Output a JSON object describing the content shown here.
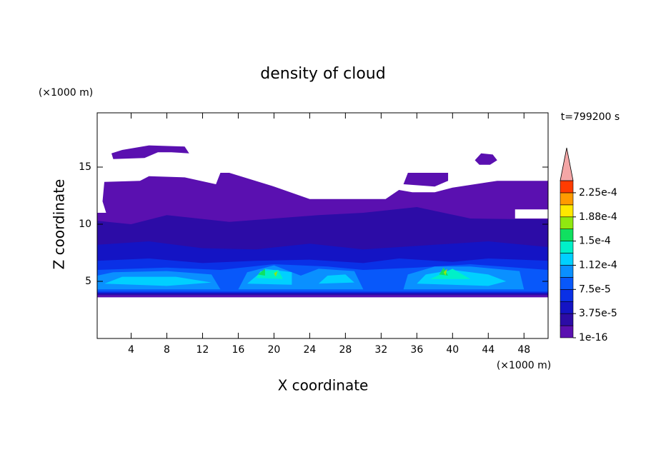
{
  "chart_data": {
    "type": "contour",
    "title": "density of cloud",
    "xlabel": "X coordinate",
    "ylabel": "Z coordinate",
    "x_unit": "(×1000 m)",
    "y_unit": "(×1000 m)",
    "time_label": "t=799200 s",
    "xlim": [
      0.2,
      50.7
    ],
    "ylim": [
      0,
      19.75
    ],
    "xticks": [
      4,
      8,
      12,
      16,
      20,
      24,
      28,
      32,
      36,
      40,
      44,
      48
    ],
    "yticks": [
      5,
      10,
      15
    ],
    "colorbar": {
      "levels": [
        1e-16,
        1.875e-05,
        3.75e-05,
        5.625e-05,
        7.5e-05,
        9.375e-05,
        0.0001125,
        0.00013125,
        0.00015,
        0.00016875,
        0.0001875,
        0.00020625,
        0.000225,
        0.00024375
      ],
      "colors": [
        "#5a10b0",
        "#2c0ca6",
        "#1414c4",
        "#0a30e6",
        "#0858fa",
        "#0a90ff",
        "#00d0ff",
        "#00f0c8",
        "#10e060",
        "#90e810",
        "#ffe800",
        "#ff9a00",
        "#ff3c00"
      ],
      "extend_color": "#f4a6a6",
      "ticks": [
        {
          "value": 1e-16,
          "label": "1e-16"
        },
        {
          "value": 3.75e-05,
          "label": "3.75e-5"
        },
        {
          "value": 7.5e-05,
          "label": "7.5e-5"
        },
        {
          "value": 0.0001125,
          "label": "1.12e-4"
        },
        {
          "value": 0.00015,
          "label": "1.5e-4"
        },
        {
          "value": 0.0001875,
          "label": "1.88e-4"
        },
        {
          "value": 0.000225,
          "label": "2.25e-4"
        }
      ]
    },
    "regions": [
      {
        "level": 1e-16,
        "outline": [
          [
            0.2,
            3.6
          ],
          [
            50.7,
            3.6
          ],
          [
            50.7,
            10.5
          ],
          [
            47,
            10.5
          ],
          [
            47,
            11.3
          ],
          [
            50.7,
            11.3
          ],
          [
            50.7,
            13.8
          ],
          [
            45,
            13.8
          ],
          [
            40,
            13.2
          ],
          [
            38,
            12.8
          ],
          [
            35.5,
            12.8
          ],
          [
            34,
            13
          ],
          [
            32.5,
            12.2
          ],
          [
            24,
            12.2
          ],
          [
            20,
            13.3
          ],
          [
            15,
            14.5
          ],
          [
            14,
            14.5
          ],
          [
            13.5,
            13.5
          ],
          [
            10,
            14.1
          ],
          [
            6,
            14.2
          ],
          [
            5,
            13.8
          ],
          [
            1,
            13.7
          ],
          [
            0.8,
            12
          ],
          [
            1.2,
            11
          ],
          [
            0.2,
            11
          ]
        ]
      },
      {
        "level": 1e-16,
        "outline": [
          [
            2,
            15.7
          ],
          [
            5.5,
            15.8
          ],
          [
            7,
            16.3
          ],
          [
            8.5,
            16.3
          ],
          [
            10.5,
            16.2
          ],
          [
            10,
            16.8
          ],
          [
            6,
            16.9
          ],
          [
            3,
            16.5
          ],
          [
            1.8,
            16.2
          ]
        ]
      },
      {
        "level": 1e-16,
        "outline": [
          [
            34.5,
            13.5
          ],
          [
            35,
            14.5
          ],
          [
            39.5,
            14.5
          ],
          [
            39.5,
            13.8
          ],
          [
            38,
            13.3
          ]
        ]
      },
      {
        "level": 1e-16,
        "outline": [
          [
            42.5,
            15.6
          ],
          [
            43.2,
            16.2
          ],
          [
            44.5,
            16.1
          ],
          [
            45,
            15.6
          ],
          [
            44.2,
            15.2
          ],
          [
            43,
            15.2
          ]
        ]
      },
      {
        "level": 1.875e-05,
        "outline": [
          [
            0.2,
            3.8
          ],
          [
            50.7,
            3.8
          ],
          [
            50.7,
            10.4
          ],
          [
            42,
            10.5
          ],
          [
            36,
            11.5
          ],
          [
            30,
            11
          ],
          [
            25,
            10.8
          ],
          [
            20,
            10.5
          ],
          [
            15,
            10.2
          ],
          [
            8,
            10.8
          ],
          [
            4,
            10
          ],
          [
            0.2,
            10.3
          ]
        ]
      },
      {
        "level": 3.75e-05,
        "outline": [
          [
            0.2,
            3.9
          ],
          [
            50.7,
            3.9
          ],
          [
            50.7,
            8
          ],
          [
            44,
            8.5
          ],
          [
            38,
            8.2
          ],
          [
            30,
            7.8
          ],
          [
            24,
            8.3
          ],
          [
            18,
            7.8
          ],
          [
            12,
            7.9
          ],
          [
            6,
            8.5
          ],
          [
            0.2,
            8.2
          ]
        ]
      },
      {
        "level": 5.625e-05,
        "outline": [
          [
            0.2,
            4
          ],
          [
            50.7,
            4
          ],
          [
            50.7,
            6.8
          ],
          [
            44,
            7
          ],
          [
            40,
            6.7
          ],
          [
            34,
            7
          ],
          [
            30,
            6.6
          ],
          [
            24,
            6.9
          ],
          [
            18,
            6.8
          ],
          [
            12,
            6.6
          ],
          [
            6,
            7
          ],
          [
            0.2,
            6.8
          ]
        ]
      },
      {
        "level": 7.5e-05,
        "outline": [
          [
            0.2,
            4.1
          ],
          [
            50.7,
            4.1
          ],
          [
            50.7,
            6
          ],
          [
            42,
            6.5
          ],
          [
            36,
            6.2
          ],
          [
            30,
            6
          ],
          [
            26,
            6.3
          ],
          [
            20,
            6.5
          ],
          [
            14,
            6
          ],
          [
            8,
            6.2
          ],
          [
            0.2,
            6
          ]
        ]
      },
      {
        "level": 9.375e-05,
        "outline": [
          [
            0.2,
            4.3
          ],
          [
            14,
            4.3
          ],
          [
            13,
            5.6
          ],
          [
            8,
            5.9
          ],
          [
            2,
            5.8
          ],
          [
            0.2,
            5.5
          ]
        ]
      },
      {
        "level": 9.375e-05,
        "outline": [
          [
            16,
            4.3
          ],
          [
            30,
            4.3
          ],
          [
            29,
            5.9
          ],
          [
            25,
            6.1
          ],
          [
            23,
            5.5
          ],
          [
            20,
            6.4
          ],
          [
            17,
            5.8
          ]
        ]
      },
      {
        "level": 9.375e-05,
        "outline": [
          [
            34.5,
            4.3
          ],
          [
            48,
            4.3
          ],
          [
            47.5,
            5.9
          ],
          [
            42,
            6.3
          ],
          [
            38,
            6.3
          ],
          [
            35,
            5.6
          ]
        ]
      },
      {
        "level": 0.0001125,
        "outline": [
          [
            1,
            4.8
          ],
          [
            8,
            4.6
          ],
          [
            13,
            4.9
          ],
          [
            9,
            5.4
          ],
          [
            3,
            5.4
          ]
        ]
      },
      {
        "level": 0.0001125,
        "outline": [
          [
            17,
            4.8
          ],
          [
            22,
            4.7
          ],
          [
            22,
            5.8
          ],
          [
            19,
            6.1
          ]
        ]
      },
      {
        "level": 0.0001125,
        "outline": [
          [
            25,
            4.8
          ],
          [
            29,
            4.9
          ],
          [
            28,
            5.6
          ],
          [
            26,
            5.5
          ]
        ]
      },
      {
        "level": 0.0001125,
        "outline": [
          [
            36,
            4.8
          ],
          [
            44,
            4.6
          ],
          [
            46,
            5
          ],
          [
            44,
            5.6
          ],
          [
            40,
            6
          ],
          [
            37,
            5.6
          ]
        ]
      },
      {
        "level": 0.00013125,
        "outline": [
          [
            18,
            5.3
          ],
          [
            21,
            5.2
          ],
          [
            20.5,
            6
          ],
          [
            18.5,
            5.9
          ]
        ]
      },
      {
        "level": 0.00013125,
        "outline": [
          [
            37.5,
            5.2
          ],
          [
            42,
            5.2
          ],
          [
            40,
            6.1
          ]
        ]
      },
      {
        "level": 0.00015,
        "outline": [
          [
            18.2,
            5.6
          ],
          [
            19,
            5.5
          ],
          [
            19,
            6.1
          ]
        ]
      },
      {
        "level": 0.00015,
        "outline": [
          [
            38.5,
            5.6
          ],
          [
            39.5,
            5.5
          ],
          [
            39,
            6.2
          ]
        ]
      },
      {
        "level": 0.00016875,
        "outline": [
          [
            20,
            5.7
          ],
          [
            20.2,
            5.4
          ],
          [
            20.4,
            5.9
          ]
        ]
      },
      {
        "level": 0.00016875,
        "outline": [
          [
            39,
            5.8
          ],
          [
            39.2,
            5.5
          ],
          [
            39.4,
            6.1
          ]
        ]
      }
    ]
  }
}
